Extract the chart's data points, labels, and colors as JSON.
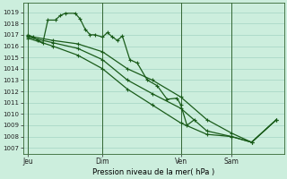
{
  "xlabel": "Pression niveau de la mer( hPa )",
  "bg_color": "#cceedd",
  "grid_color": "#99ccbb",
  "line_color": "#1a5c1a",
  "vline_color": "#336633",
  "ylim": [
    1006.5,
    1019.8
  ],
  "yticks": [
    1007,
    1008,
    1009,
    1010,
    1011,
    1012,
    1013,
    1014,
    1015,
    1016,
    1017,
    1018,
    1019
  ],
  "day_labels": [
    "Jeu",
    "Dim",
    "Ven",
    "Sam"
  ],
  "day_positions": [
    0.0,
    0.3,
    0.615,
    0.82
  ],
  "series1_x": [
    0.0,
    0.02,
    0.04,
    0.06,
    0.08,
    0.11,
    0.13,
    0.15,
    0.19,
    0.21,
    0.23,
    0.25,
    0.27,
    0.3,
    0.32,
    0.34,
    0.36,
    0.38,
    0.41,
    0.44,
    0.48,
    0.52,
    0.56,
    0.6,
    0.615,
    0.64,
    0.67
  ],
  "series1_y": [
    1017.0,
    1016.8,
    1016.5,
    1016.3,
    1018.3,
    1018.3,
    1018.7,
    1018.9,
    1018.9,
    1018.4,
    1017.5,
    1017.0,
    1017.0,
    1016.8,
    1017.2,
    1016.8,
    1016.5,
    1016.9,
    1014.8,
    1014.5,
    1013.0,
    1012.5,
    1011.3,
    1011.4,
    1010.8,
    1009.0,
    1009.5
  ],
  "series2_x": [
    0.0,
    0.1,
    0.2,
    0.3,
    0.4,
    0.5,
    0.615,
    0.72,
    0.82,
    0.9,
    1.0
  ],
  "series2_y": [
    1016.9,
    1016.5,
    1016.2,
    1015.5,
    1014.0,
    1013.0,
    1011.5,
    1009.5,
    1008.3,
    1007.5,
    1009.5
  ],
  "series3_x": [
    0.0,
    0.1,
    0.2,
    0.3,
    0.4,
    0.5,
    0.615,
    0.72,
    0.82,
    0.9,
    1.0
  ],
  "series3_y": [
    1016.8,
    1016.3,
    1015.8,
    1014.8,
    1013.0,
    1011.8,
    1010.5,
    1008.5,
    1008.0,
    1007.5,
    1009.5
  ],
  "series4_x": [
    0.0,
    0.1,
    0.2,
    0.3,
    0.4,
    0.5,
    0.615,
    0.72,
    0.82,
    0.9,
    1.0
  ],
  "series4_y": [
    1016.7,
    1016.0,
    1015.2,
    1014.0,
    1012.2,
    1010.8,
    1009.2,
    1008.2,
    1008.0,
    1007.5,
    1009.5
  ]
}
